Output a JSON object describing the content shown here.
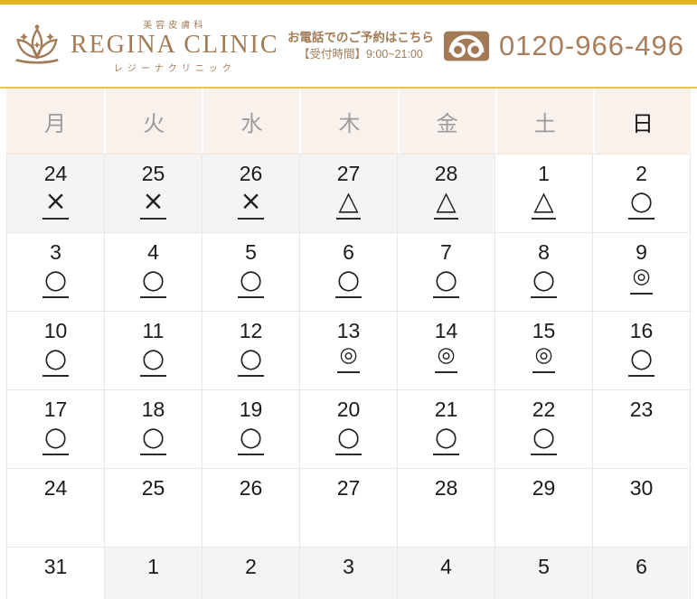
{
  "header": {
    "clinic_subtitle": "美容皮膚科",
    "clinic_name": "REGINA CLINIC",
    "clinic_name_kana": "レジーナクリニック",
    "phone_label": "お電話でのご予約はこちら",
    "phone_hours": "【受付時間】9:00~21:00",
    "phone_number": "0120-966-496"
  },
  "colors": {
    "accent_gold": "#e2b224",
    "gold_line": "#e9c455",
    "brand_brown": "#a27b56",
    "weekday_bg": "#f9f1ec",
    "other_month_bg": "#f5f4f4",
    "grid_border": "#e9e6e3",
    "sunday_text": "#141414",
    "weekday_text": "#9c9c9c"
  },
  "calendar": {
    "weekdays": [
      {
        "label": "月",
        "emphasis": false
      },
      {
        "label": "火",
        "emphasis": false
      },
      {
        "label": "水",
        "emphasis": false
      },
      {
        "label": "木",
        "emphasis": false
      },
      {
        "label": "金",
        "emphasis": false
      },
      {
        "label": "土",
        "emphasis": false
      },
      {
        "label": "日",
        "emphasis": true
      }
    ],
    "symbol_legend": {
      "unavailable": "×",
      "few_slots": "△",
      "available": "○",
      "plenty": "◎"
    },
    "weeks": [
      [
        {
          "date": "24",
          "symbol": "×",
          "other_month": true
        },
        {
          "date": "25",
          "symbol": "×",
          "other_month": true
        },
        {
          "date": "26",
          "symbol": "×",
          "other_month": true
        },
        {
          "date": "27",
          "symbol": "△",
          "other_month": true
        },
        {
          "date": "28",
          "symbol": "△",
          "other_month": true
        },
        {
          "date": "1",
          "symbol": "△",
          "other_month": false
        },
        {
          "date": "2",
          "symbol": "○",
          "other_month": false
        }
      ],
      [
        {
          "date": "3",
          "symbol": "○",
          "other_month": false
        },
        {
          "date": "4",
          "symbol": "○",
          "other_month": false
        },
        {
          "date": "5",
          "symbol": "○",
          "other_month": false
        },
        {
          "date": "6",
          "symbol": "○",
          "other_month": false
        },
        {
          "date": "7",
          "symbol": "○",
          "other_month": false
        },
        {
          "date": "8",
          "symbol": "○",
          "other_month": false
        },
        {
          "date": "9",
          "symbol": "◎",
          "other_month": false
        }
      ],
      [
        {
          "date": "10",
          "symbol": "○",
          "other_month": false
        },
        {
          "date": "11",
          "symbol": "○",
          "other_month": false
        },
        {
          "date": "12",
          "symbol": "○",
          "other_month": false
        },
        {
          "date": "13",
          "symbol": "◎",
          "other_month": false
        },
        {
          "date": "14",
          "symbol": "◎",
          "other_month": false
        },
        {
          "date": "15",
          "symbol": "◎",
          "other_month": false
        },
        {
          "date": "16",
          "symbol": "○",
          "other_month": false
        }
      ],
      [
        {
          "date": "17",
          "symbol": "○",
          "other_month": false
        },
        {
          "date": "18",
          "symbol": "○",
          "other_month": false
        },
        {
          "date": "19",
          "symbol": "○",
          "other_month": false
        },
        {
          "date": "20",
          "symbol": "○",
          "other_month": false
        },
        {
          "date": "21",
          "symbol": "○",
          "other_month": false
        },
        {
          "date": "22",
          "symbol": "○",
          "other_month": false
        },
        {
          "date": "23",
          "symbol": "",
          "other_month": false
        }
      ],
      [
        {
          "date": "24",
          "symbol": "",
          "other_month": false
        },
        {
          "date": "25",
          "symbol": "",
          "other_month": false
        },
        {
          "date": "26",
          "symbol": "",
          "other_month": false
        },
        {
          "date": "27",
          "symbol": "",
          "other_month": false
        },
        {
          "date": "28",
          "symbol": "",
          "other_month": false
        },
        {
          "date": "29",
          "symbol": "",
          "other_month": false
        },
        {
          "date": "30",
          "symbol": "",
          "other_month": false
        }
      ],
      [
        {
          "date": "31",
          "symbol": "",
          "other_month": false
        },
        {
          "date": "1",
          "symbol": "",
          "other_month": true
        },
        {
          "date": "2",
          "symbol": "",
          "other_month": true
        },
        {
          "date": "3",
          "symbol": "",
          "other_month": true
        },
        {
          "date": "4",
          "symbol": "",
          "other_month": true
        },
        {
          "date": "5",
          "symbol": "",
          "other_month": true
        },
        {
          "date": "6",
          "symbol": "",
          "other_month": true
        }
      ]
    ]
  }
}
